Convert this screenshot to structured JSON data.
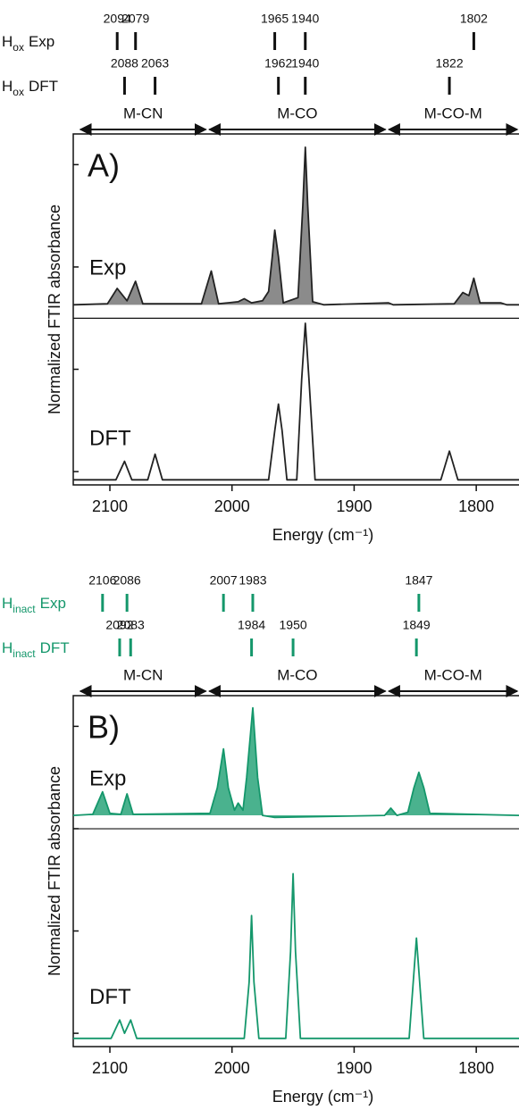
{
  "chart_data": [
    {
      "type": "line",
      "panel_label": "A)",
      "ylabel": "Normalized FTIR absorbance",
      "xlabel": "Energy (cm⁻¹)",
      "xlim": [
        2130,
        1765
      ],
      "xticks": [
        2100,
        2000,
        1900,
        1800
      ],
      "ylim": [
        -0.13,
        3.3
      ],
      "yticks": [
        0,
        1,
        2,
        3
      ],
      "color": "#111111",
      "band_rows": [
        {
          "label": "H",
          "label_sub": "ox",
          "label_suffix": "Exp",
          "values": [
            2094,
            2079,
            1965,
            1940,
            1802
          ]
        },
        {
          "label": "H",
          "label_sub": "ox",
          "label_suffix": "DFT",
          "values": [
            2088,
            2063,
            1962,
            1940,
            1822
          ]
        }
      ],
      "regions": [
        {
          "label": "M-CN",
          "from": 2125.6,
          "to": 2020
        },
        {
          "label": "M-CO",
          "from": 2020,
          "to": 1873
        },
        {
          "label": "M-CO-M",
          "from": 1873,
          "to": 1765
        }
      ],
      "series": [
        {
          "name": "Exp",
          "color": "#222222",
          "fill": "#777777",
          "x": [
            2130,
            2102,
            2094,
            2086,
            2079,
            2073,
            2025,
            2017,
            2011,
            1995,
            1990,
            1984,
            1975,
            1970,
            1967,
            1965,
            1962,
            1958,
            1946,
            1942,
            1940,
            1938,
            1934,
            1925,
            1872,
            1868,
            1818,
            1811,
            1806,
            1802,
            1797,
            1780,
            1775,
            1765
          ],
          "values": [
            1.63,
            1.64,
            1.79,
            1.67,
            1.86,
            1.64,
            1.64,
            1.96,
            1.64,
            1.66,
            1.69,
            1.65,
            1.67,
            1.76,
            2.1,
            2.36,
            2.1,
            1.65,
            1.7,
            2.6,
            3.17,
            2.6,
            1.66,
            1.63,
            1.65,
            1.63,
            1.64,
            1.75,
            1.72,
            1.89,
            1.65,
            1.65,
            1.63,
            1.63
          ]
        },
        {
          "name": "DFT",
          "color": "#222222",
          "x": [
            2130,
            2095,
            2088,
            2082,
            2069,
            2063,
            2057,
            1970,
            1965,
            1962,
            1959,
            1955,
            1947,
            1943,
            1940,
            1937,
            1932,
            1829,
            1822,
            1815,
            1765
          ],
          "values": [
            -0.08,
            -0.08,
            0.1,
            -0.08,
            -0.08,
            0.17,
            -0.08,
            -0.08,
            0.4,
            0.66,
            0.4,
            -0.08,
            -0.08,
            0.9,
            1.45,
            0.9,
            -0.08,
            -0.08,
            0.2,
            -0.08,
            -0.08
          ]
        }
      ]
    },
    {
      "type": "line",
      "panel_label": "B)",
      "ylabel": "Normalized FTIR absorbance",
      "xlabel": "Energy (cm⁻¹)",
      "xlim": [
        2130,
        1765
      ],
      "xticks": [
        2100,
        2000,
        1900,
        1800
      ],
      "ylim": [
        -0.13,
        3.3
      ],
      "yticks": [
        0,
        1,
        2,
        3
      ],
      "color": "#14976b",
      "band_rows": [
        {
          "label": "H",
          "label_sub": "inact",
          "label_suffix": "Exp",
          "values": [
            2106,
            2086,
            2007,
            1983,
            1847
          ]
        },
        {
          "label": "H",
          "label_sub": "inact",
          "label_suffix": "DFT",
          "values": [
            2092,
            2083,
            1984,
            1950,
            1849
          ]
        }
      ],
      "regions": [
        {
          "label": "M-CN",
          "from": 2125.6,
          "to": 2020
        },
        {
          "label": "M-CO",
          "from": 2020,
          "to": 1873
        },
        {
          "label": "M-CO-M",
          "from": 1873,
          "to": 1765
        }
      ],
      "series": [
        {
          "name": "Exp",
          "color": "#14976b",
          "fill": "#2aa57a",
          "x": [
            2130,
            2114,
            2106,
            2100,
            2091,
            2086,
            2081,
            2018,
            2012,
            2007,
            2003,
            1998,
            1995,
            1991,
            1988,
            1983,
            1979,
            1975,
            1965,
            1875,
            1870,
            1865,
            1856,
            1851,
            1847,
            1843,
            1838,
            1765
          ],
          "values": [
            2.13,
            2.14,
            2.36,
            2.15,
            2.14,
            2.34,
            2.14,
            2.15,
            2.4,
            2.78,
            2.4,
            2.18,
            2.25,
            2.18,
            2.5,
            3.18,
            2.5,
            2.13,
            2.11,
            2.13,
            2.2,
            2.13,
            2.16,
            2.4,
            2.55,
            2.4,
            2.15,
            2.13
          ]
        },
        {
          "name": "DFT",
          "color": "#14976b",
          "x": [
            2130,
            2099,
            2092,
            2088,
            2083,
            2078,
            1990,
            1986,
            1984,
            1982,
            1978,
            1956,
            1952,
            1950,
            1948,
            1944,
            1855,
            1849,
            1843,
            1765
          ],
          "values": [
            -0.05,
            -0.05,
            0.13,
            0.0,
            0.13,
            -0.05,
            -0.05,
            0.5,
            1.15,
            0.5,
            -0.05,
            -0.05,
            0.8,
            1.56,
            0.8,
            -0.05,
            -0.05,
            0.93,
            -0.05,
            -0.05
          ]
        }
      ]
    }
  ]
}
